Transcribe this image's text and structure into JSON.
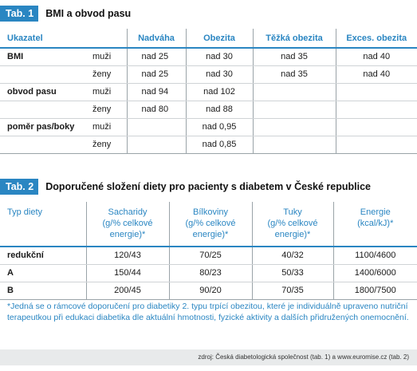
{
  "tab1": {
    "badge": "Tab. 1",
    "title": "BMI a obvod pasu",
    "headers": [
      "Ukazatel",
      "Nadváha",
      "Obezita",
      "Těžká obezita",
      "Exces. obezita"
    ],
    "rows": [
      {
        "label": "BMI",
        "sub": "muži",
        "values": [
          "nad 25",
          "nad 30",
          "nad 35",
          "nad 40"
        ]
      },
      {
        "label": "",
        "sub": "ženy",
        "values": [
          "nad 25",
          "nad 30",
          "nad 35",
          "nad 40"
        ]
      },
      {
        "label": "obvod pasu",
        "sub": "muži",
        "values": [
          "nad 94",
          "nad 102",
          "",
          ""
        ]
      },
      {
        "label": "",
        "sub": "ženy",
        "values": [
          "nad 80",
          "nad 88",
          "",
          ""
        ]
      },
      {
        "label": "poměr pas/boky",
        "sub": "muži",
        "values": [
          "",
          "nad 0,95",
          "",
          ""
        ]
      },
      {
        "label": "",
        "sub": "ženy",
        "values": [
          "",
          "nad 0,85",
          "",
          ""
        ]
      }
    ]
  },
  "tab2": {
    "badge": "Tab. 2",
    "title": "Doporučené složení diety pro pacienty s diabetem v České republice",
    "headers": [
      {
        "main": "Typ diety",
        "sub1": "",
        "sub2": ""
      },
      {
        "main": "Sacharidy",
        "sub1": "(g/% celkové",
        "sub2": "energie)*"
      },
      {
        "main": "Bílkoviny",
        "sub1": "(g/% celkové",
        "sub2": "energie)*"
      },
      {
        "main": "Tuky",
        "sub1": "(g/% celkové",
        "sub2": "energie)*"
      },
      {
        "main": "Energie",
        "sub1": "(kcal/kJ)*",
        "sub2": ""
      }
    ],
    "rows": [
      {
        "label": "redukční",
        "values": [
          "120/43",
          "70/25",
          "40/32",
          "1100/4600"
        ]
      },
      {
        "label": "A",
        "values": [
          "150/44",
          "80/23",
          "50/33",
          "1400/6000"
        ]
      },
      {
        "label": "B",
        "values": [
          "200/45",
          "90/20",
          "70/35",
          "1800/7500"
        ]
      }
    ]
  },
  "footnote": "*Jedná se o rámcové doporučení pro diabetiky 2. typu trpící obezitou, které je individuálně upraveno nutriční terapeutkou při edukaci diabetika dle aktuální hmotnosti, fyzické aktivity a dalších přidružených onemocnění.",
  "source": "zdroj: Česká diabetologická společnost (tab. 1) a www.euromise.cz (tab. 2)"
}
